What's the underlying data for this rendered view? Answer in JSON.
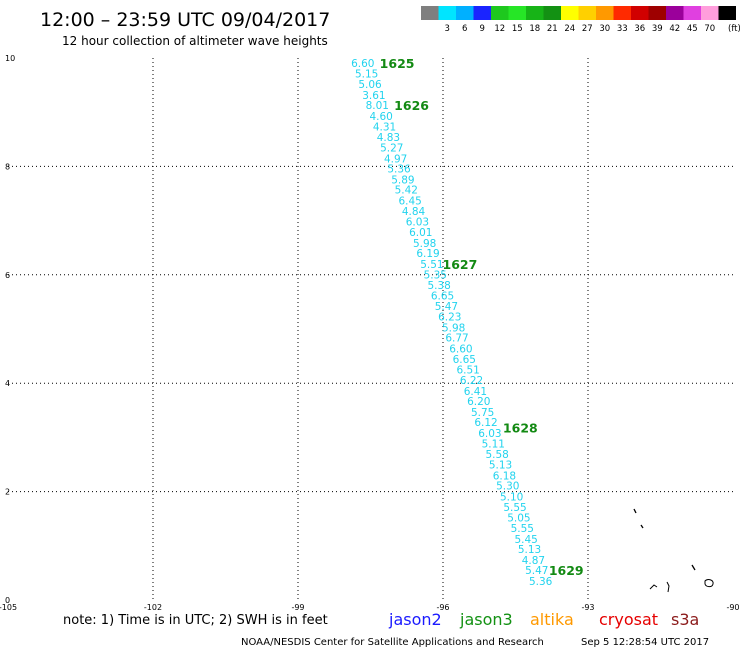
{
  "header": {
    "title": "12:00 – 23:59 UTC 09/04/2017",
    "subtitle": "12 hour collection of altimeter wave heights"
  },
  "colorbar": {
    "unit": "(ft)",
    "swatches": [
      {
        "label": "",
        "color": "#7f7f7f"
      },
      {
        "label": "3",
        "color": "#00e5ff"
      },
      {
        "label": "6",
        "color": "#00b0ff"
      },
      {
        "label": "9",
        "color": "#1a24ff"
      },
      {
        "label": "12",
        "color": "#1ec81e"
      },
      {
        "label": "15",
        "color": "#26e626"
      },
      {
        "label": "18",
        "color": "#17b417"
      },
      {
        "label": "21",
        "color": "#139113"
      },
      {
        "label": "24",
        "color": "#ffff00"
      },
      {
        "label": "27",
        "color": "#ffd000"
      },
      {
        "label": "30",
        "color": "#ff9900"
      },
      {
        "label": "33",
        "color": "#ff2a00"
      },
      {
        "label": "36",
        "color": "#d10000"
      },
      {
        "label": "39",
        "color": "#9e0000"
      },
      {
        "label": "42",
        "color": "#9b009b"
      },
      {
        "label": "45",
        "color": "#e040e0"
      },
      {
        "label": "70",
        "color": "#ff9edc"
      },
      {
        "label": "",
        "color": "#000000"
      }
    ]
  },
  "chart_data": {
    "type": "scatter",
    "xlim": [
      -105,
      -90
    ],
    "ylim": [
      0,
      10
    ],
    "x_ticks": [
      -105,
      -102,
      -99,
      -96,
      -93,
      -90
    ],
    "x_tick_labels": [
      "-105",
      "-102",
      "-99",
      "-96",
      "-93",
      "-90"
    ],
    "y_ticks": [
      0,
      2,
      4,
      6,
      8,
      10
    ],
    "y_tick_labels": [
      "0",
      "2",
      "4",
      "6",
      "8",
      "10"
    ],
    "grid": true,
    "swh_color": "#22d3ee",
    "time_color": "#138a13",
    "swh_points": [
      {
        "lon": -97.66,
        "lat": 9.91,
        "label": "6.60"
      },
      {
        "lon": -97.58,
        "lat": 9.71,
        "label": "5.15"
      },
      {
        "lon": -97.51,
        "lat": 9.52,
        "label": "5.06"
      },
      {
        "lon": -97.43,
        "lat": 9.32,
        "label": "3.61"
      },
      {
        "lon": -97.36,
        "lat": 9.13,
        "label": "8.01"
      },
      {
        "lon": -97.28,
        "lat": 8.93,
        "label": "4.60"
      },
      {
        "lon": -97.21,
        "lat": 8.74,
        "label": "4.31"
      },
      {
        "lon": -97.13,
        "lat": 8.54,
        "label": "4.83"
      },
      {
        "lon": -97.06,
        "lat": 8.35,
        "label": "5.27"
      },
      {
        "lon": -96.98,
        "lat": 8.15,
        "label": "4.97"
      },
      {
        "lon": -96.91,
        "lat": 7.96,
        "label": "5.36"
      },
      {
        "lon": -96.83,
        "lat": 7.76,
        "label": "5.89"
      },
      {
        "lon": -96.76,
        "lat": 7.57,
        "label": "5.42"
      },
      {
        "lon": -96.68,
        "lat": 7.37,
        "label": "6.45"
      },
      {
        "lon": -96.61,
        "lat": 7.18,
        "label": "4.84"
      },
      {
        "lon": -96.53,
        "lat": 6.98,
        "label": "6.03"
      },
      {
        "lon": -96.46,
        "lat": 6.79,
        "label": "6.01"
      },
      {
        "lon": -96.38,
        "lat": 6.59,
        "label": "5.98"
      },
      {
        "lon": -96.31,
        "lat": 6.4,
        "label": "6.19"
      },
      {
        "lon": -96.23,
        "lat": 6.2,
        "label": "5.51"
      },
      {
        "lon": -96.16,
        "lat": 6.01,
        "label": "5.35"
      },
      {
        "lon": -96.08,
        "lat": 5.81,
        "label": "5.38"
      },
      {
        "lon": -96.01,
        "lat": 5.62,
        "label": "6.65"
      },
      {
        "lon": -95.93,
        "lat": 5.42,
        "label": "5.47"
      },
      {
        "lon": -95.86,
        "lat": 5.23,
        "label": "6.23"
      },
      {
        "lon": -95.78,
        "lat": 5.03,
        "label": "5.98"
      },
      {
        "lon": -95.71,
        "lat": 4.84,
        "label": "6.77"
      },
      {
        "lon": -95.63,
        "lat": 4.64,
        "label": "6.60"
      },
      {
        "lon": -95.56,
        "lat": 4.45,
        "label": "6.65"
      },
      {
        "lon": -95.48,
        "lat": 4.25,
        "label": "6.51"
      },
      {
        "lon": -95.41,
        "lat": 4.06,
        "label": "6.22"
      },
      {
        "lon": -95.33,
        "lat": 3.86,
        "label": "6.41"
      },
      {
        "lon": -95.26,
        "lat": 3.67,
        "label": "6.20"
      },
      {
        "lon": -95.18,
        "lat": 3.47,
        "label": "5.75"
      },
      {
        "lon": -95.11,
        "lat": 3.28,
        "label": "6.12"
      },
      {
        "lon": -95.03,
        "lat": 3.08,
        "label": "6.03"
      },
      {
        "lon": -94.96,
        "lat": 2.89,
        "label": "5.11"
      },
      {
        "lon": -94.88,
        "lat": 2.69,
        "label": "5.58"
      },
      {
        "lon": -94.81,
        "lat": 2.5,
        "label": "5.13"
      },
      {
        "lon": -94.73,
        "lat": 2.3,
        "label": "6.18"
      },
      {
        "lon": -94.66,
        "lat": 2.11,
        "label": "5.30"
      },
      {
        "lon": -94.58,
        "lat": 1.91,
        "label": "5.10"
      },
      {
        "lon": -94.51,
        "lat": 1.72,
        "label": "5.55"
      },
      {
        "lon": -94.43,
        "lat": 1.52,
        "label": "5.05"
      },
      {
        "lon": -94.36,
        "lat": 1.33,
        "label": "5.55"
      },
      {
        "lon": -94.28,
        "lat": 1.13,
        "label": "5.45"
      },
      {
        "lon": -94.21,
        "lat": 0.94,
        "label": "5.13"
      },
      {
        "lon": -94.13,
        "lat": 0.74,
        "label": "4.87"
      },
      {
        "lon": -94.06,
        "lat": 0.55,
        "label": "5.47"
      },
      {
        "lon": -93.98,
        "lat": 0.35,
        "label": "5.36"
      }
    ],
    "time_labels": [
      {
        "lon": -96.95,
        "lat": 9.91,
        "label": "1625"
      },
      {
        "lon": -96.65,
        "lat": 9.13,
        "label": "1626"
      },
      {
        "lon": -95.65,
        "lat": 6.2,
        "label": "1627"
      },
      {
        "lon": -94.4,
        "lat": 3.18,
        "label": "1628"
      },
      {
        "lon": -93.45,
        "lat": 0.55,
        "label": "1629"
      }
    ]
  },
  "footer": {
    "note": "note: 1) Time is in UTC; 2) SWH is in feet",
    "satellites": [
      {
        "label": "jason2",
        "color": "#1a1aff"
      },
      {
        "label": "jason3",
        "color": "#139113"
      },
      {
        "label": "altika",
        "color": "#ff9900"
      },
      {
        "label": "cryosat",
        "color": "#e60000"
      },
      {
        "label": "s3a",
        "color": "#8b1a1a"
      }
    ],
    "credit": "NOAA/NESDIS Center for Satellite Applications and Research",
    "timestamp": "Sep  5 12:28:54 UTC 2017"
  }
}
